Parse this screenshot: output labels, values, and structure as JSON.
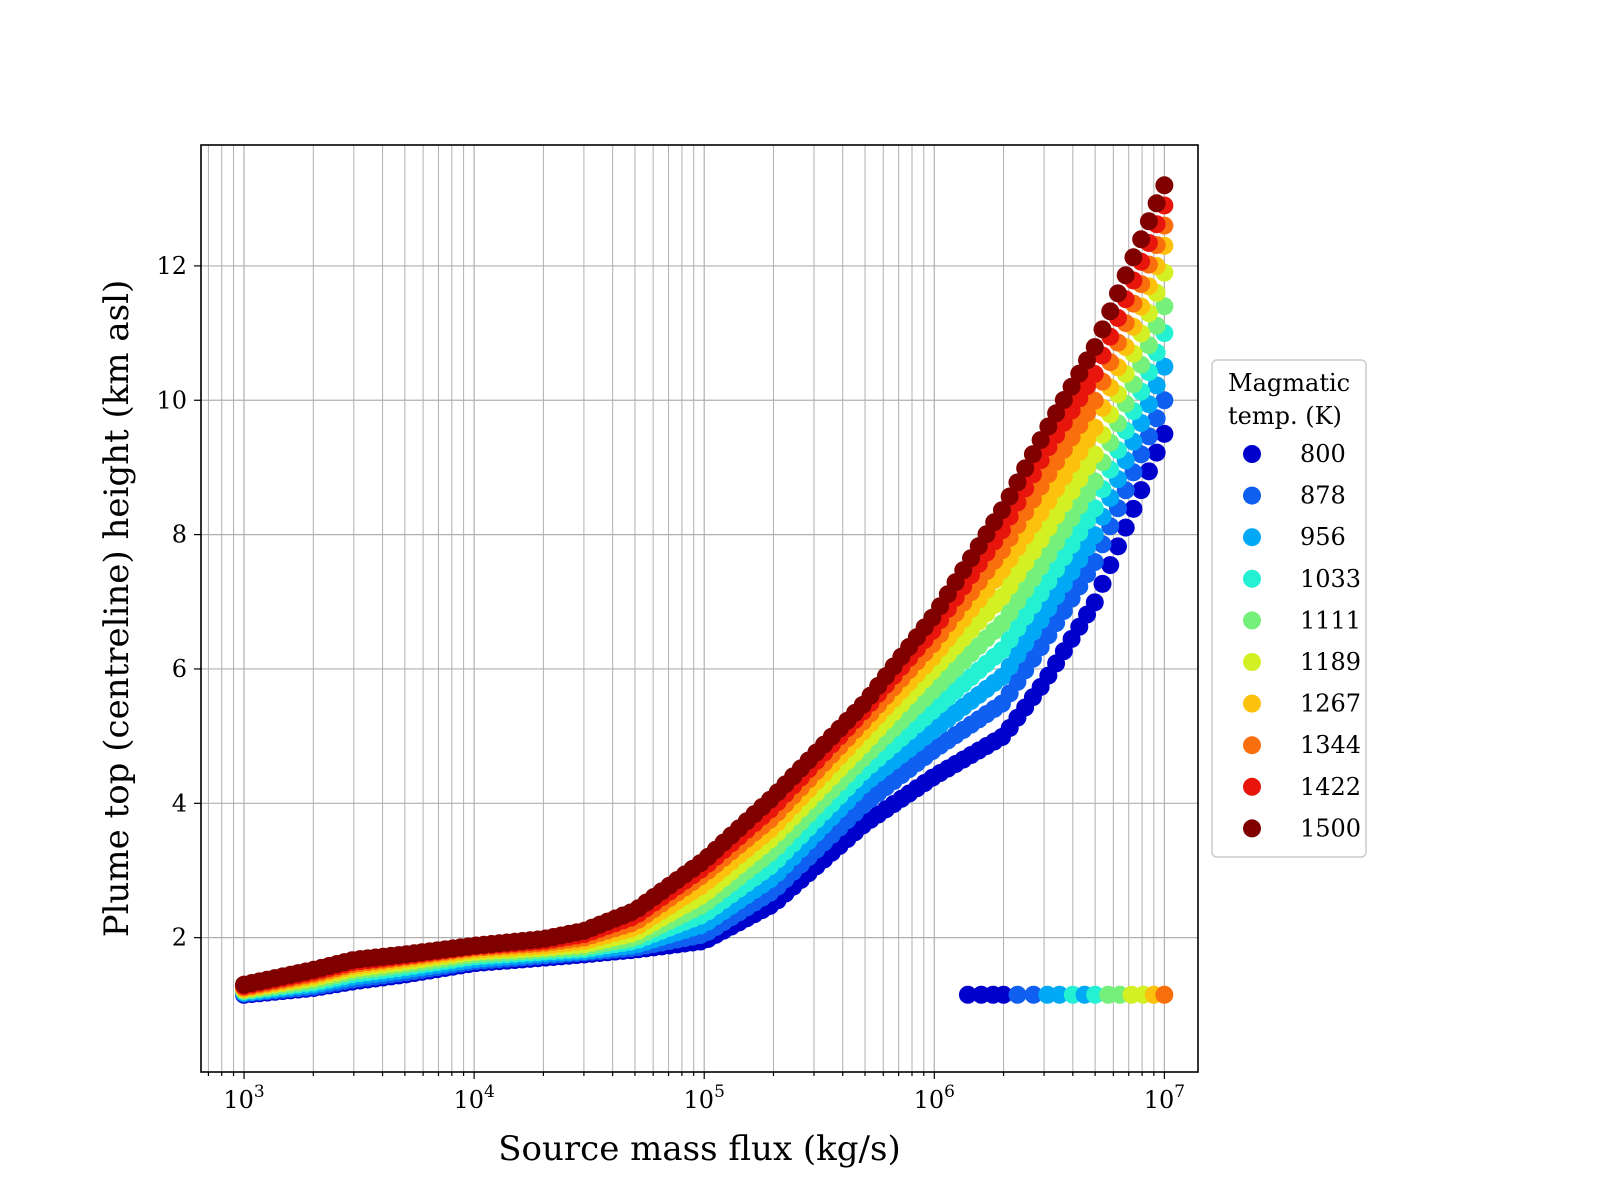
{
  "chart_data": {
    "type": "scatter",
    "title": "",
    "xlabel": "Source mass flux (kg/s)",
    "ylabel": "Plume top (centreline) height (km asl)",
    "xscale": "log",
    "xlim": [
      650,
      14000000
    ],
    "ylim": [
      0.0,
      13.8
    ],
    "x_ticks": [
      {
        "base": "10",
        "exp": "3",
        "value": 1000
      },
      {
        "base": "10",
        "exp": "4",
        "value": 10000
      },
      {
        "base": "10",
        "exp": "5",
        "value": 100000
      },
      {
        "base": "10",
        "exp": "6",
        "value": 1000000
      },
      {
        "base": "10",
        "exp": "7",
        "value": 10000000
      }
    ],
    "y_ticks": [
      {
        "label": "2",
        "value": 2
      },
      {
        "label": "4",
        "value": 4
      },
      {
        "label": "6",
        "value": 6
      },
      {
        "label": "8",
        "value": 8
      },
      {
        "label": "10",
        "value": 10
      },
      {
        "label": "12",
        "value": 12
      }
    ],
    "grid": true,
    "grid_minor_x": true,
    "legend": {
      "title_lines": [
        "Magmatic",
        "temp. (K)"
      ],
      "placement": "outside-right"
    },
    "x": [
      1000,
      2000,
      3000,
      5000,
      10000,
      20000,
      30000,
      50000,
      100000,
      200000,
      500000,
      1000000,
      2000000,
      3000000,
      5000000,
      10000000
    ],
    "series": [
      {
        "name": "800",
        "color": "#0000cd",
        "y": [
          1.15,
          1.25,
          1.35,
          1.45,
          1.62,
          1.7,
          1.75,
          1.82,
          1.95,
          2.5,
          3.7,
          4.4,
          5.0,
          5.8,
          7.0,
          9.5
        ]
      },
      {
        "name": "878",
        "color": "#0f5ff0",
        "y": [
          1.17,
          1.27,
          1.38,
          1.48,
          1.65,
          1.73,
          1.78,
          1.85,
          2.05,
          2.7,
          4.0,
          4.8,
          5.5,
          6.4,
          7.6,
          10.0
        ]
      },
      {
        "name": "956",
        "color": "#00a8f5",
        "y": [
          1.18,
          1.3,
          1.42,
          1.52,
          1.68,
          1.76,
          1.8,
          1.89,
          2.2,
          2.9,
          4.3,
          5.1,
          5.9,
          6.8,
          8.0,
          10.5
        ]
      },
      {
        "name": "1033",
        "color": "#24f0d4",
        "y": [
          1.2,
          1.33,
          1.46,
          1.56,
          1.72,
          1.79,
          1.83,
          1.95,
          2.35,
          3.1,
          4.5,
          5.4,
          6.3,
          7.2,
          8.4,
          11.0
        ]
      },
      {
        "name": "1111",
        "color": "#75f07a",
        "y": [
          1.21,
          1.36,
          1.5,
          1.6,
          1.75,
          1.82,
          1.86,
          2.0,
          2.5,
          3.3,
          4.7,
          5.7,
          6.7,
          7.6,
          8.8,
          11.4
        ]
      },
      {
        "name": "1189",
        "color": "#d3f024",
        "y": [
          1.23,
          1.4,
          1.54,
          1.64,
          1.79,
          1.85,
          1.9,
          2.07,
          2.65,
          3.5,
          4.9,
          6.0,
          7.1,
          8.0,
          9.2,
          11.9
        ]
      },
      {
        "name": "1267",
        "color": "#fbc10c",
        "y": [
          1.24,
          1.43,
          1.58,
          1.68,
          1.82,
          1.88,
          1.95,
          2.15,
          2.8,
          3.65,
          5.1,
          6.2,
          7.5,
          8.4,
          9.6,
          12.3
        ]
      },
      {
        "name": "1344",
        "color": "#f96f0d",
        "y": [
          1.26,
          1.46,
          1.61,
          1.71,
          1.85,
          1.92,
          2.0,
          2.23,
          2.95,
          3.8,
          5.25,
          6.4,
          7.8,
          8.8,
          10.0,
          12.6
        ]
      },
      {
        "name": "1422",
        "color": "#e8150c",
        "y": [
          1.28,
          1.49,
          1.64,
          1.73,
          1.87,
          1.95,
          2.05,
          2.32,
          3.05,
          3.95,
          5.4,
          6.6,
          8.1,
          9.2,
          10.4,
          12.9
        ]
      },
      {
        "name": "1500",
        "color": "#800000",
        "y": [
          1.3,
          1.52,
          1.67,
          1.75,
          1.88,
          1.98,
          2.1,
          2.4,
          3.15,
          4.1,
          5.5,
          6.8,
          8.4,
          9.5,
          10.8,
          13.2
        ]
      }
    ],
    "secondary_points": {
      "y": 1.15,
      "x": [
        1400000,
        1600000,
        1800000,
        2000000,
        2300000,
        2700000,
        3100000,
        3500000,
        4000000,
        4500000,
        5000000,
        5700000,
        6400000,
        7200000,
        8100000,
        9000000,
        10000000
      ],
      "colors": [
        "#0000cd",
        "#0000cd",
        "#0000cd",
        "#0000cd",
        "#0f5ff0",
        "#0f5ff0",
        "#00a8f5",
        "#00a8f5",
        "#24f0d4",
        "#00a8f5",
        "#24f0d4",
        "#75f07a",
        "#75f07a",
        "#d3f024",
        "#d3f024",
        "#fbc10c",
        "#f96f0d"
      ]
    }
  }
}
